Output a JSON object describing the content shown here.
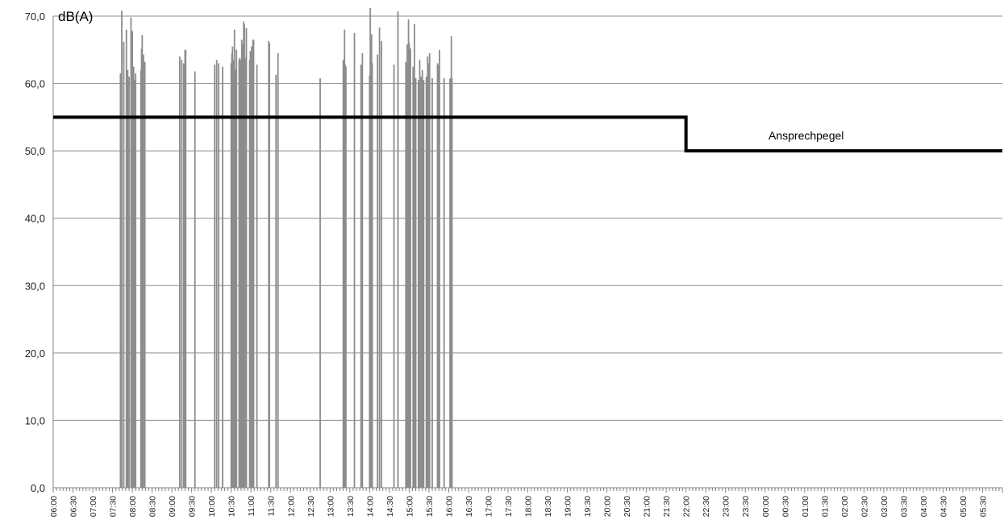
{
  "chart_data": {
    "type": "bar",
    "ylabel": "dB(A)",
    "ylim": [
      0,
      70
    ],
    "y_ticks": [
      "0,0",
      "10,0",
      "20,0",
      "30,0",
      "40,0",
      "50,0",
      "60,0",
      "70,0"
    ],
    "x_range": [
      "06:00",
      "06:00"
    ],
    "x_tick_labels": [
      "06:00",
      "06:30",
      "07:00",
      "07:30",
      "08:00",
      "08:30",
      "09:00",
      "09:30",
      "10:00",
      "10:30",
      "11:00",
      "11:30",
      "12:00",
      "12:30",
      "13:00",
      "13:30",
      "14:00",
      "14:30",
      "15:00",
      "15:30",
      "16:00",
      "16:30",
      "17:00",
      "17:30",
      "18:00",
      "18:30",
      "19:00",
      "19:30",
      "20:00",
      "20:30",
      "21:00",
      "21:30",
      "22:00",
      "22:30",
      "23:00",
      "23:30",
      "00:00",
      "00:30",
      "01:00",
      "01:30",
      "02:00",
      "02:30",
      "03:00",
      "03:30",
      "04:00",
      "04:30",
      "05:00",
      "05:30"
    ],
    "grid": true,
    "bar_color": "#8c8c8c",
    "series": [
      {
        "values": [
          {
            "t": "07:42",
            "v": 61.5
          },
          {
            "t": "07:44",
            "v": 70.8
          },
          {
            "t": "07:47",
            "v": 66.2
          },
          {
            "t": "07:51",
            "v": 68.0
          },
          {
            "t": "07:53",
            "v": 62.0
          },
          {
            "t": "07:55",
            "v": 61.0
          },
          {
            "t": "07:58",
            "v": 69.8
          },
          {
            "t": "08:00",
            "v": 67.8
          },
          {
            "t": "08:01",
            "v": 61.5
          },
          {
            "t": "08:02",
            "v": 62.5
          },
          {
            "t": "08:03",
            "v": 60.5
          },
          {
            "t": "08:05",
            "v": 61.5
          },
          {
            "t": "08:13",
            "v": 62.0
          },
          {
            "t": "08:14",
            "v": 65.2
          },
          {
            "t": "08:15",
            "v": 67.2
          },
          {
            "t": "08:17",
            "v": 64.3
          },
          {
            "t": "08:18",
            "v": 63.2
          },
          {
            "t": "08:19",
            "v": 63.2
          },
          {
            "t": "09:12",
            "v": 64.0
          },
          {
            "t": "09:15",
            "v": 63.5
          },
          {
            "t": "09:18",
            "v": 63.0
          },
          {
            "t": "09:20",
            "v": 65.0
          },
          {
            "t": "09:21",
            "v": 65.0
          },
          {
            "t": "09:35",
            "v": 61.8
          },
          {
            "t": "10:05",
            "v": 62.8
          },
          {
            "t": "10:08",
            "v": 63.5
          },
          {
            "t": "10:11",
            "v": 63.0
          },
          {
            "t": "10:17",
            "v": 62.5
          },
          {
            "t": "10:30",
            "v": 63.0
          },
          {
            "t": "10:31",
            "v": 64.5
          },
          {
            "t": "10:32",
            "v": 65.5
          },
          {
            "t": "10:33",
            "v": 63.3
          },
          {
            "t": "10:34",
            "v": 63.5
          },
          {
            "t": "10:35",
            "v": 68.0
          },
          {
            "t": "10:36",
            "v": 62.0
          },
          {
            "t": "10:37",
            "v": 61.5
          },
          {
            "t": "10:38",
            "v": 65.0
          },
          {
            "t": "10:42",
            "v": 63.5
          },
          {
            "t": "10:43",
            "v": 63.8
          },
          {
            "t": "10:44",
            "v": 63.5
          },
          {
            "t": "10:46",
            "v": 66.5
          },
          {
            "t": "10:47",
            "v": 60.5
          },
          {
            "t": "10:48",
            "v": 65.8
          },
          {
            "t": "10:49",
            "v": 69.2
          },
          {
            "t": "10:50",
            "v": 68.8
          },
          {
            "t": "10:51",
            "v": 63.8
          },
          {
            "t": "10:53",
            "v": 68.2
          },
          {
            "t": "10:58",
            "v": 63.5
          },
          {
            "t": "10:59",
            "v": 64.8
          },
          {
            "t": "11:01",
            "v": 65.5
          },
          {
            "t": "11:02",
            "v": 63.8
          },
          {
            "t": "11:03",
            "v": 66.5
          },
          {
            "t": "11:04",
            "v": 66.5
          },
          {
            "t": "11:09",
            "v": 62.8
          },
          {
            "t": "11:27",
            "v": 66.3
          },
          {
            "t": "11:28",
            "v": 66.0
          },
          {
            "t": "11:38",
            "v": 61.3
          },
          {
            "t": "11:41",
            "v": 64.5
          },
          {
            "t": "12:45",
            "v": 60.8
          },
          {
            "t": "13:20",
            "v": 63.5
          },
          {
            "t": "13:22",
            "v": 68.0
          },
          {
            "t": "13:23",
            "v": 62.8
          },
          {
            "t": "13:24",
            "v": 62.5
          },
          {
            "t": "13:37",
            "v": 67.5
          },
          {
            "t": "13:47",
            "v": 62.8
          },
          {
            "t": "13:49",
            "v": 64.5
          },
          {
            "t": "14:00",
            "v": 61.2
          },
          {
            "t": "14:01",
            "v": 71.2
          },
          {
            "t": "14:02",
            "v": 67.3
          },
          {
            "t": "14:03",
            "v": 67.3
          },
          {
            "t": "14:04",
            "v": 63.0
          },
          {
            "t": "14:12",
            "v": 64.3
          },
          {
            "t": "14:15",
            "v": 68.3
          },
          {
            "t": "14:18",
            "v": 66.3
          },
          {
            "t": "14:37",
            "v": 62.8
          },
          {
            "t": "14:43",
            "v": 70.7
          },
          {
            "t": "14:55",
            "v": 63.2
          },
          {
            "t": "14:57",
            "v": 65.8
          },
          {
            "t": "14:58",
            "v": 62.2
          },
          {
            "t": "14:59",
            "v": 69.5
          },
          {
            "t": "15:00",
            "v": 66.0
          },
          {
            "t": "15:01",
            "v": 64.2
          },
          {
            "t": "15:02",
            "v": 65.2
          },
          {
            "t": "15:06",
            "v": 62.5
          },
          {
            "t": "15:08",
            "v": 68.8
          },
          {
            "t": "15:09",
            "v": 60.8
          },
          {
            "t": "15:10",
            "v": 60.8
          },
          {
            "t": "15:14",
            "v": 60.5
          },
          {
            "t": "15:16",
            "v": 63.5
          },
          {
            "t": "15:18",
            "v": 61.0
          },
          {
            "t": "15:20",
            "v": 62.0
          },
          {
            "t": "15:22",
            "v": 60.5
          },
          {
            "t": "15:26",
            "v": 61.0
          },
          {
            "t": "15:28",
            "v": 64.0
          },
          {
            "t": "15:30",
            "v": 63.0
          },
          {
            "t": "15:31",
            "v": 64.5
          },
          {
            "t": "15:35",
            "v": 60.8
          },
          {
            "t": "15:43",
            "v": 63.0
          },
          {
            "t": "15:44",
            "v": 62.7
          },
          {
            "t": "15:46",
            "v": 65.0
          },
          {
            "t": "15:53",
            "v": 60.8
          },
          {
            "t": "16:02",
            "v": 60.7
          },
          {
            "t": "16:03",
            "v": 60.8
          },
          {
            "t": "16:04",
            "v": 67.0
          },
          {
            "t": "16:05",
            "v": 60.8
          }
        ]
      }
    ],
    "threshold_line": {
      "name": "Ansprechpegel",
      "segments": [
        {
          "from": "06:00",
          "to": "22:00",
          "level": 55.0
        },
        {
          "from": "22:00",
          "to": "06:00",
          "level": 50.0
        }
      ],
      "color": "#000000"
    },
    "annotations": [
      {
        "text": "Ansprechpegel"
      }
    ]
  }
}
